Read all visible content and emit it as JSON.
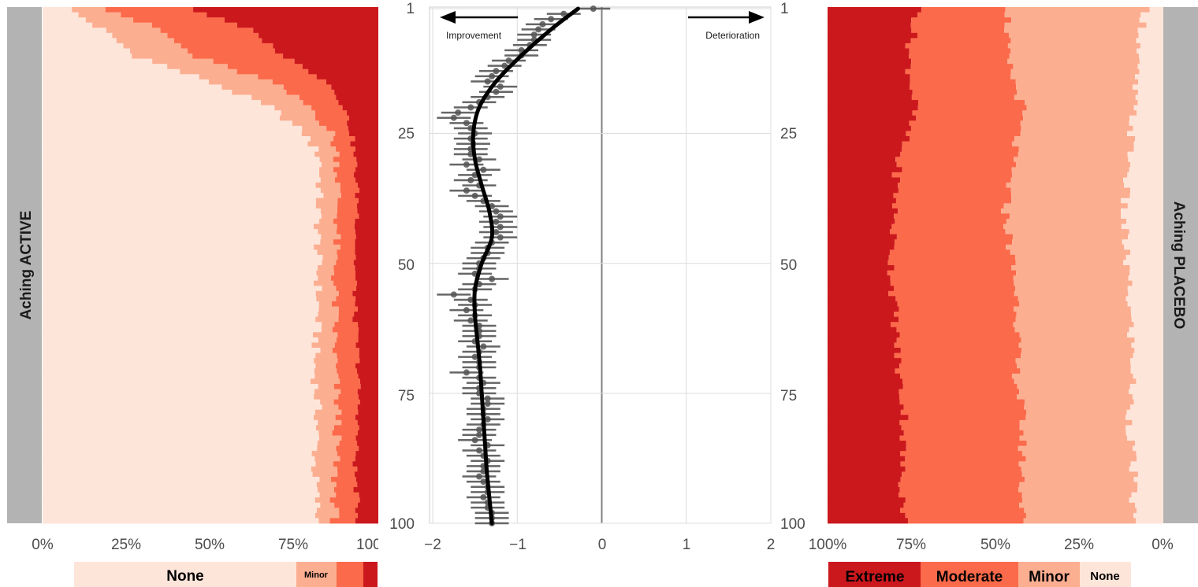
{
  "chart_data": [
    {
      "type": "bar",
      "orientation": "horizontal-stacked",
      "panel": "left",
      "strip_label": "Aching ACTIVE",
      "rows": [
        1,
        100
      ],
      "xlim": [
        0,
        100
      ],
      "x_tick_labels": [
        "0%",
        "25%",
        "50%",
        "75%",
        "100%"
      ],
      "categories": [
        "None",
        "Minor",
        "Moderate",
        "Extreme"
      ],
      "colors": {
        "None": "#FEE5D9",
        "Minor": "#FCAE91",
        "Moderate": "#FB6A4A",
        "Extreme": "#CB181D"
      },
      "cumulative_boundaries_percent": {
        "rows": [
          1,
          5,
          10,
          15,
          20,
          25,
          30,
          40,
          50,
          60,
          70,
          80,
          90,
          100
        ],
        "none_end": [
          8,
          18,
          28,
          50,
          68,
          78,
          83,
          82,
          82,
          82,
          81,
          82,
          81,
          82
        ],
        "minor_end": [
          20,
          35,
          45,
          68,
          80,
          86,
          88,
          88,
          87,
          87,
          87,
          88,
          87,
          87
        ],
        "moderate_end": [
          45,
          62,
          72,
          85,
          90,
          92,
          93,
          94,
          93,
          93,
          94,
          94,
          93,
          94
        ]
      },
      "legend": [
        "None",
        "Minor",
        "",
        ""
      ]
    },
    {
      "type": "scatter",
      "panel": "middle",
      "ylim": [
        1,
        100
      ],
      "y_reversed": true,
      "y_tick_labels": [
        "1",
        "25",
        "50",
        "75",
        "100"
      ],
      "xlim": [
        -2,
        2
      ],
      "x_tick_labels": [
        "−2",
        "−1",
        "0",
        "1",
        "2"
      ],
      "annotations": {
        "left_arrow": "Improvement",
        "right_arrow": "Deterioration"
      },
      "smooth_line": {
        "y": [
          1,
          5,
          10,
          15,
          20,
          25,
          30,
          35,
          40,
          45,
          50,
          55,
          60,
          65,
          70,
          75,
          80,
          85,
          90,
          95,
          100
        ],
        "x": [
          -0.28,
          -0.6,
          -0.95,
          -1.25,
          -1.45,
          -1.52,
          -1.5,
          -1.42,
          -1.33,
          -1.3,
          -1.42,
          -1.5,
          -1.5,
          -1.47,
          -1.44,
          -1.42,
          -1.4,
          -1.38,
          -1.36,
          -1.33,
          -1.3
        ]
      },
      "points": {
        "y": [
          1,
          2,
          3,
          4,
          5,
          6,
          7,
          8,
          9,
          10,
          11,
          12,
          13,
          14,
          15,
          16,
          17,
          18,
          19,
          20,
          21,
          22,
          23,
          24,
          25,
          26,
          27,
          28,
          29,
          30,
          31,
          32,
          33,
          34,
          35,
          36,
          37,
          38,
          39,
          40,
          41,
          42,
          43,
          44,
          45,
          46,
          47,
          48,
          49,
          50,
          51,
          52,
          53,
          54,
          55,
          56,
          57,
          58,
          59,
          60,
          61,
          62,
          63,
          64,
          65,
          66,
          67,
          68,
          69,
          70,
          71,
          72,
          73,
          74,
          75,
          76,
          77,
          78,
          79,
          80,
          81,
          82,
          83,
          84,
          85,
          86,
          87,
          88,
          89,
          90,
          91,
          92,
          93,
          94,
          95,
          96,
          97,
          98,
          99,
          100
        ],
        "x": [
          -0.1,
          -0.45,
          -0.6,
          -0.7,
          -0.75,
          -0.8,
          -0.8,
          -0.85,
          -0.95,
          -0.95,
          -1.1,
          -1.15,
          -1.25,
          -1.3,
          -1.35,
          -1.2,
          -1.25,
          -1.35,
          -1.45,
          -1.55,
          -1.7,
          -1.75,
          -1.6,
          -1.55,
          -1.5,
          -1.55,
          -1.52,
          -1.55,
          -1.55,
          -1.45,
          -1.6,
          -1.4,
          -1.5,
          -1.55,
          -1.45,
          -1.6,
          -1.5,
          -1.4,
          -1.3,
          -1.25,
          -1.2,
          -1.25,
          -1.2,
          -1.25,
          -1.2,
          -1.3,
          -1.35,
          -1.35,
          -1.4,
          -1.45,
          -1.45,
          -1.5,
          -1.3,
          -1.45,
          -1.5,
          -1.75,
          -1.55,
          -1.5,
          -1.6,
          -1.5,
          -1.55,
          -1.45,
          -1.45,
          -1.45,
          -1.5,
          -1.4,
          -1.45,
          -1.5,
          -1.45,
          -1.45,
          -1.6,
          -1.45,
          -1.4,
          -1.45,
          -1.45,
          -1.35,
          -1.35,
          -1.4,
          -1.4,
          -1.35,
          -1.4,
          -1.45,
          -1.45,
          -1.5,
          -1.35,
          -1.45,
          -1.4,
          -1.35,
          -1.4,
          -1.4,
          -1.45,
          -1.4,
          -1.35,
          -1.35,
          -1.4,
          -1.35,
          -1.35,
          -1.3,
          -1.3,
          -1.3
        ],
        "ci_half_width": 0.2
      }
    },
    {
      "type": "bar",
      "orientation": "horizontal-stacked",
      "panel": "right",
      "strip_label": "Aching PLACEBO",
      "rows": [
        1,
        100
      ],
      "xlim": [
        100,
        0
      ],
      "x_tick_labels": [
        "100%",
        "75%",
        "50%",
        "25%",
        "0%"
      ],
      "categories": [
        "Extreme",
        "Moderate",
        "Minor",
        "None"
      ],
      "colors": {
        "Extreme": "#CB181D",
        "Moderate": "#FB6A4A",
        "Minor": "#FCAE91",
        "None": "#FEE5D9"
      },
      "cumulative_boundaries_percent": {
        "rows": [
          1,
          10,
          20,
          30,
          40,
          50,
          60,
          70,
          80,
          90,
          100
        ],
        "extreme_end": [
          27,
          24,
          26,
          21,
          20,
          19,
          20,
          21,
          23,
          22,
          23
        ],
        "moderate_end": [
          54,
          53,
          58,
          55,
          53,
          55,
          57,
          56,
          58,
          58,
          58
        ],
        "minor_end": [
          95,
          92,
          91,
          90,
          88,
          89,
          90,
          91,
          90,
          91,
          91
        ]
      },
      "legend": [
        "Extreme",
        "Moderate",
        "Minor",
        "None"
      ]
    }
  ]
}
